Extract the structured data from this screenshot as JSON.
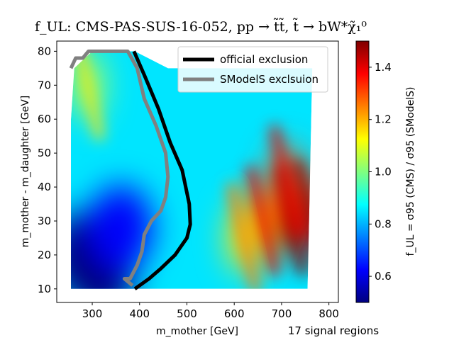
{
  "chart_data": {
    "type": "heatmap",
    "title": "f_UL: CMS-PAS-SUS-16-052, pp → t̃t̃, t̃ → bW*χ̃₁⁰",
    "xlabel": "m_mother [GeV]",
    "ylabel": "m_mother - m_daughter [GeV]",
    "colorbar_label": "f_UL = σ95 (CMS) / σ95 (SModelS)",
    "annotation": "17 signal regions",
    "xlim": [
      225,
      820
    ],
    "ylim": [
      6,
      83
    ],
    "x_ticks": [
      300,
      400,
      500,
      600,
      700,
      800
    ],
    "y_ticks": [
      10,
      20,
      30,
      40,
      50,
      60,
      70,
      80
    ],
    "colorbar_range": [
      0.5,
      1.5
    ],
    "colorbar_ticks": [
      0.6,
      0.8,
      1.0,
      1.2,
      1.4
    ],
    "colormap_stops": [
      "#00007f",
      "#0000ff",
      "#007fff",
      "#00ffff",
      "#7fff7f",
      "#ffff00",
      "#ff7f00",
      "#ff0000",
      "#7f0000"
    ],
    "region_outline": [
      [
        255,
        10
      ],
      [
        255,
        60
      ],
      [
        262,
        75
      ],
      [
        300,
        80
      ],
      [
        390,
        80
      ],
      [
        460,
        75
      ],
      [
        765,
        75
      ],
      [
        755,
        10
      ]
    ],
    "hotspots": [
      {
        "x": 720,
        "y": 30,
        "value": 1.5
      },
      {
        "x": 710,
        "y": 42,
        "value": 1.3
      },
      {
        "x": 660,
        "y": 30,
        "value": 1.3
      },
      {
        "x": 620,
        "y": 25,
        "value": 1.15
      },
      {
        "x": 760,
        "y": 32,
        "value": 1.4
      },
      {
        "x": 290,
        "y": 70,
        "value": 1.05
      },
      {
        "x": 275,
        "y": 20,
        "value": 0.5
      },
      {
        "x": 320,
        "y": 14,
        "value": 0.5
      },
      {
        "x": 360,
        "y": 28,
        "value": 0.62
      }
    ],
    "series": [
      {
        "name": "official exclusion",
        "color": "#000000",
        "points": [
          [
            388,
            80
          ],
          [
            410,
            73
          ],
          [
            440,
            63
          ],
          [
            465,
            53
          ],
          [
            490,
            45
          ],
          [
            505,
            35
          ],
          [
            507,
            29
          ],
          [
            500,
            25
          ],
          [
            475,
            20
          ],
          [
            445,
            16
          ],
          [
            420,
            13
          ],
          [
            400,
            11
          ],
          [
            390,
            10
          ]
        ]
      },
      {
        "name": "SModelS exclsuion",
        "color": "#808080",
        "points": [
          [
            255,
            75
          ],
          [
            265,
            78
          ],
          [
            280,
            78
          ],
          [
            292,
            80
          ],
          [
            375,
            80
          ],
          [
            395,
            75
          ],
          [
            410,
            66
          ],
          [
            435,
            58
          ],
          [
            455,
            50
          ],
          [
            460,
            43
          ],
          [
            455,
            37
          ],
          [
            445,
            33
          ],
          [
            425,
            30
          ],
          [
            410,
            26
          ],
          [
            405,
            21
          ],
          [
            395,
            17
          ],
          [
            380,
            13
          ],
          [
            368,
            13
          ],
          [
            385,
            11
          ]
        ]
      }
    ]
  }
}
